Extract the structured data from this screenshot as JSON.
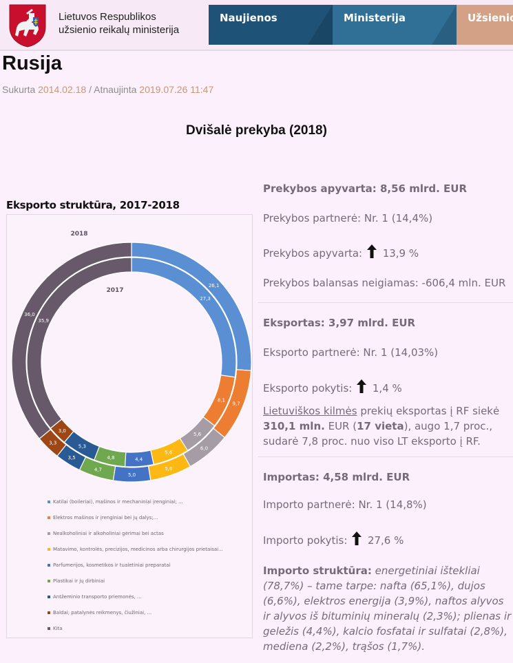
{
  "header": {
    "ministry_name_line1": "Lietuvos Respublikos",
    "ministry_name_line2": "užsienio reikalų ministerija",
    "logo_icon": "lithuania-coat-of-arms",
    "nav": [
      {
        "label": "Naujienos",
        "color": "#1e5276"
      },
      {
        "label": "Ministerija",
        "color": "#306f96"
      },
      {
        "label": "Užsienio",
        "color": "#d3a185"
      }
    ]
  },
  "page": {
    "title": "Rusija",
    "created_label": "Sukurta",
    "created_date": "2014.02.18",
    "separator": "/",
    "updated_label": "Atnaujinta",
    "updated_date": "2019.07.26 11:47",
    "section_title": "Dvišalė prekyba (2018)"
  },
  "chart_heading": "Eksporto struktūra, 2017-2018",
  "chart_data": {
    "type": "donut",
    "title": "Eksporto struktūra, 2017-2018",
    "ring_labels": {
      "outer": "2018",
      "inner": "2017"
    },
    "categories": [
      "Katilai (boileriai), mašinos ir mechaniniai įrenginiai; ...",
      "Elektros mašinos ir įrenginiai bei jų dalys;...",
      "Nealkoholiniai ir alkoholiniai gėrimai bei actas",
      "Matavimo, kontrolės, precizijos, medicinos arba chirurgijos prietaisai...",
      "Parfumerijos, kosmetikos ir tualetiniai preparatai",
      "Plastikai ir jų dirbiniai",
      "Antžeminio transporto priemonės, ...",
      "Baldai; patalynės reikmenys, čiužiniai, ...",
      "Kita"
    ],
    "colors": [
      "#5b8fd4",
      "#ed7d31",
      "#a59ca6",
      "#fdb813",
      "#4472c4",
      "#70a84f",
      "#2a5a94",
      "#9e4716",
      "#67596a"
    ],
    "series": [
      {
        "name": "2018",
        "ring": "outer",
        "values": [
          26.1,
          9.7,
          6.0,
          5.6,
          5.0,
          4.7,
          3.5,
          3.3,
          36.0
        ],
        "labels": [
          "26,1",
          "9,7",
          "6,0",
          "5,6",
          "5,0",
          "4,7",
          "3,5",
          "3,3",
          "36,0"
        ]
      },
      {
        "name": "2017",
        "ring": "inner",
        "values": [
          27.3,
          8.1,
          5.6,
          5.6,
          4.4,
          4.8,
          5.3,
          3.0,
          35.9
        ],
        "labels": [
          "27,3",
          "8,1",
          "5,6",
          "5,6",
          "4,4",
          "4,8",
          "5,3",
          "3,0",
          "35,9"
        ]
      }
    ],
    "legend_position": "bottom"
  },
  "trade": {
    "turnover_title": "Prekybos apyvarta: 8,56 mlrd. EUR",
    "trade_partner": "Prekybos partnerė: Nr. 1 (14,4%)",
    "turnover_change_label": "Prekybos apyvarta:",
    "turnover_change_value": "13,9 %",
    "balance": "Prekybos balansas neigiamas: -606,4 mln. EUR",
    "export_title": "Eksportas: 3,97 mlrd. EUR",
    "export_partner": "Eksporto partnerė: Nr. 1 (14,03%)",
    "export_change_label": "Eksporto pokytis:",
    "export_change_value": "1,4 %",
    "lt_origin_link": "Lietuviškos kilmės",
    "lt_origin_text1": " prekių eksportas į RF siekė ",
    "lt_origin_amount": "310,1 mln.",
    "lt_origin_text2": " EUR (",
    "lt_origin_rank": "17 vieta",
    "lt_origin_text3": "), augo 1,7 proc., sudarė 7,8 proc. nuo viso LT eksporto į RF.",
    "import_title": "Importas: 4,58 mlrd. EUR",
    "import_partner": "Importo partnerė: Nr. 1 (14,8%)",
    "import_change_label": "Importo pokytis:",
    "import_change_value": "27,6 %",
    "import_structure_label": "Importo struktūra:",
    "import_structure_text": " energetiniai ištekliai (78,7%) – tame tarpe: nafta (65,1%), dujos (6,6%), elektros energija (3,9%), naftos alyvos ir alyvos iš bituminių mineralų (2,3%); plienas ir geležis (4,4%), kalcio fosfatai ir sulfatai (2,8%), mediena (2,2%), trąšos (1,7%).",
    "arrow_icon": "arrow-up-icon"
  }
}
